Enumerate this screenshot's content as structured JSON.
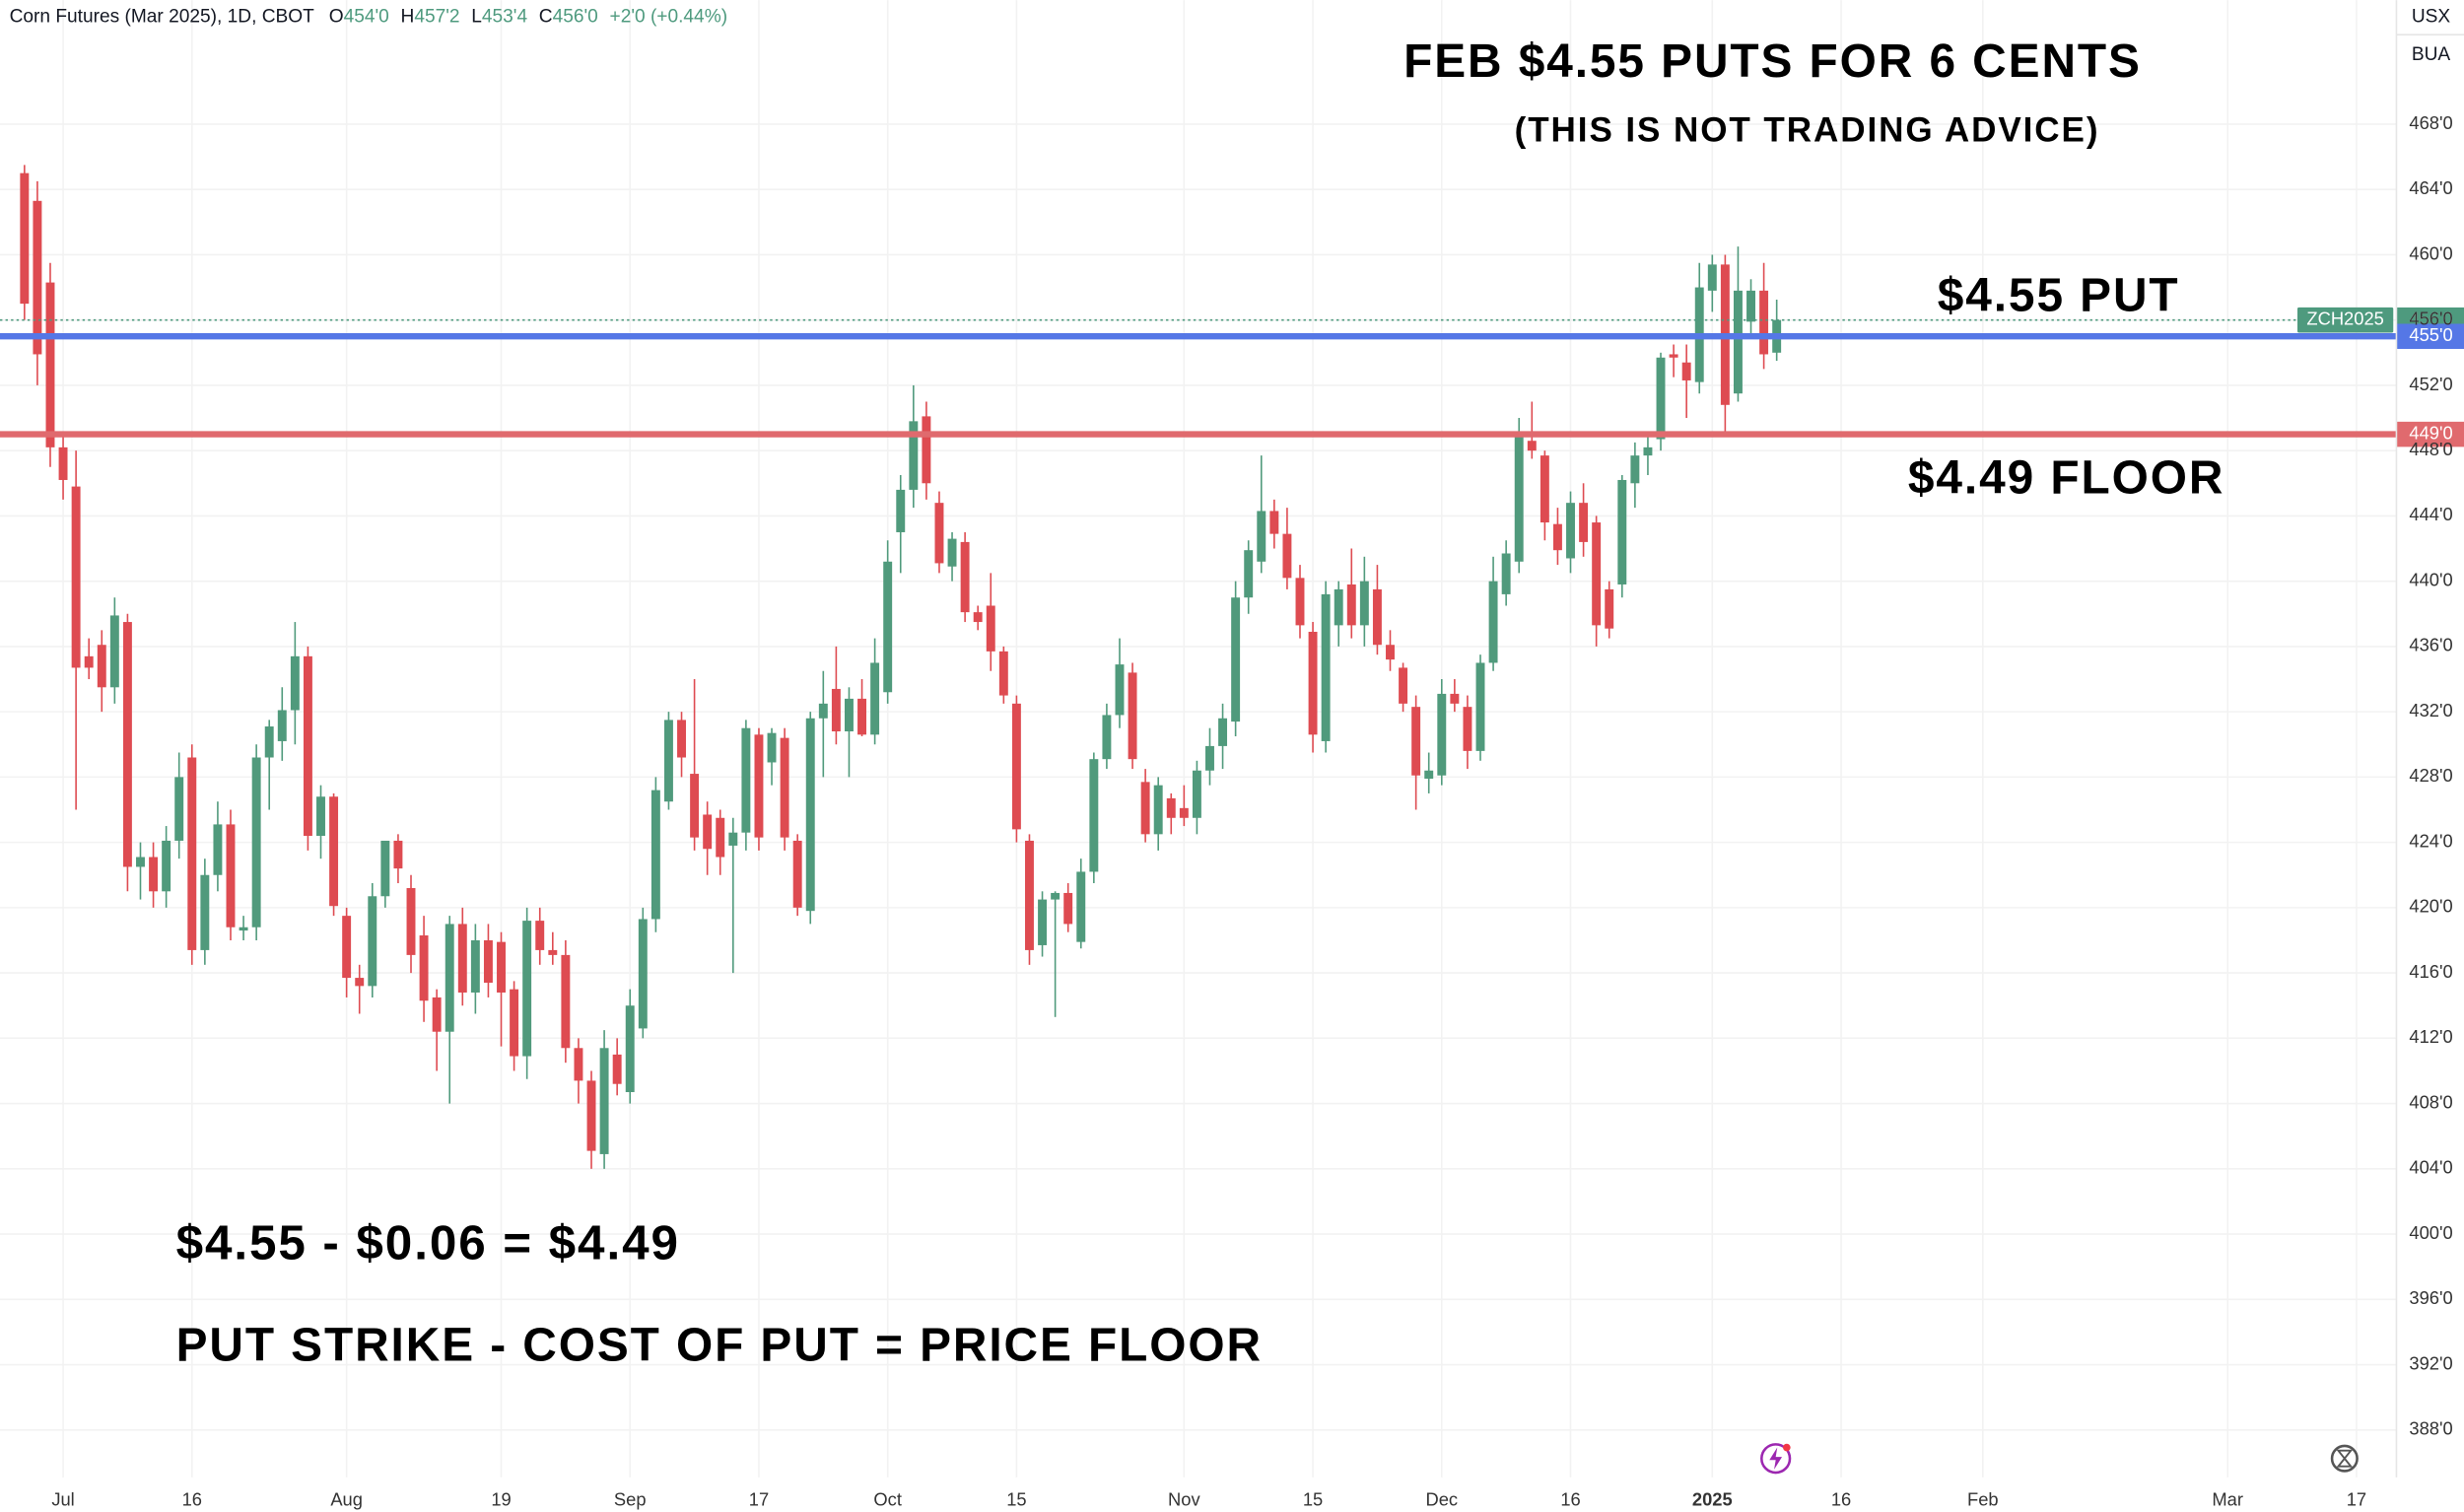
{
  "chart_data": {
    "type": "candlestick",
    "header": {
      "symbol": "Corn Futures (Mar 2025), 1D, CBOT",
      "ohlc": [
        {
          "key": "O",
          "value": "454'0"
        },
        {
          "key": "H",
          "value": "457'2"
        },
        {
          "key": "L",
          "value": "453'4"
        },
        {
          "key": "C",
          "value": "456'0"
        }
      ],
      "change": "+2'0 (+0.44%)"
    },
    "corner_labels": [
      "USX",
      "BUA"
    ],
    "annotations": [
      "FEB $4.55 PUTS FOR 6 CENTS",
      "(THIS IS NOT TRADING ADVICE)",
      "$4.55 PUT",
      "$4.49 FLOOR",
      "$4.55 - $0.06 = $4.49",
      "PUT STRIKE - COST OF PUT = PRICE FLOOR"
    ],
    "up_color": "#509a7c",
    "down_color": "#de4b51",
    "grid": true,
    "xlim": [
      -4.9,
      181.1
    ],
    "xticks": [
      {
        "value": 0,
        "label": "Jul"
      },
      {
        "value": 10,
        "label": "16"
      },
      {
        "value": 22,
        "label": "Aug"
      },
      {
        "value": 34,
        "label": "19"
      },
      {
        "value": 44,
        "label": "Sep"
      },
      {
        "value": 54,
        "label": "17"
      },
      {
        "value": 64,
        "label": "Oct"
      },
      {
        "value": 74,
        "label": "15"
      },
      {
        "value": 87,
        "label": "Nov"
      },
      {
        "value": 97,
        "label": "15"
      },
      {
        "value": 107,
        "label": "Dec"
      },
      {
        "value": 117,
        "label": "16"
      },
      {
        "value": 128,
        "label": "2025"
      },
      {
        "value": 138,
        "label": "16"
      },
      {
        "value": 149,
        "label": "Feb"
      },
      {
        "value": 168,
        "label": "Mar"
      },
      {
        "value": 178,
        "label": "17"
      }
    ],
    "ylim": [
      385.1,
      475.6
    ],
    "yticks": [
      {
        "value": 388,
        "label": "388'0"
      },
      {
        "value": 392,
        "label": "392'0"
      },
      {
        "value": 396,
        "label": "396'0"
      },
      {
        "value": 400,
        "label": "400'0"
      },
      {
        "value": 404,
        "label": "404'0"
      },
      {
        "value": 408,
        "label": "408'0"
      },
      {
        "value": 412,
        "label": "412'0"
      },
      {
        "value": 416,
        "label": "416'0"
      },
      {
        "value": 420,
        "label": "420'0"
      },
      {
        "value": 424,
        "label": "424'0"
      },
      {
        "value": 428,
        "label": "428'0"
      },
      {
        "value": 432,
        "label": "432'0"
      },
      {
        "value": 436,
        "label": "436'0"
      },
      {
        "value": 440,
        "label": "440'0"
      },
      {
        "value": 444,
        "label": "444'0"
      },
      {
        "value": 448,
        "label": "448'0"
      },
      {
        "value": 452,
        "label": "452'0"
      },
      {
        "value": 456,
        "label": "456'0"
      },
      {
        "value": 460,
        "label": "460'0"
      },
      {
        "value": 464,
        "label": "464'0"
      },
      {
        "value": 468,
        "label": "468'0"
      }
    ],
    "levels": [
      {
        "value": 455,
        "label": "455'0",
        "color": "#5577e6"
      },
      {
        "value": 449,
        "label": "449'0",
        "color": "#e06a6e"
      }
    ],
    "last_price": {
      "symbol": "ZCH2025",
      "value": 456,
      "label": "456'0",
      "color": "#4e9a7e"
    },
    "x": [
      -3,
      -2,
      -1,
      0,
      1,
      2,
      3,
      4,
      5,
      6,
      7,
      8,
      9,
      10,
      11,
      12,
      13,
      14,
      15,
      16,
      17,
      18,
      19,
      20,
      21,
      22,
      23,
      24,
      25,
      26,
      27,
      28,
      29,
      30,
      31,
      32,
      33,
      34,
      35,
      36,
      37,
      38,
      39,
      40,
      41,
      42,
      43,
      44,
      45,
      46,
      47,
      48,
      49,
      50,
      51,
      52,
      53,
      54,
      55,
      56,
      57,
      58,
      59,
      60,
      61,
      62,
      63,
      64,
      65,
      66,
      67,
      68,
      69,
      70,
      71,
      72,
      73,
      74,
      75,
      76,
      77,
      78,
      79,
      80,
      81,
      82,
      83,
      84,
      85,
      86,
      87,
      88,
      89,
      90,
      91,
      92,
      93,
      94,
      95,
      96,
      97,
      98,
      99,
      100,
      101,
      102,
      103,
      104,
      105,
      106,
      107,
      108,
      109,
      110,
      111,
      112,
      113,
      114,
      115,
      116,
      117,
      118,
      119,
      120,
      121,
      122,
      123,
      124,
      125,
      126,
      127,
      128,
      129,
      130,
      131,
      132,
      133
    ],
    "open": [
      465.0,
      463.3,
      458.3,
      448.2,
      445.8,
      435.4,
      436.1,
      433.5,
      437.5,
      422.5,
      423.1,
      421.0,
      424.1,
      429.2,
      417.4,
      422.0,
      425.1,
      418.6,
      418.8,
      429.2,
      430.2,
      432.1,
      435.4,
      424.4,
      426.8,
      419.5,
      415.7,
      415.2,
      420.7,
      424.1,
      421.2,
      418.3,
      414.5,
      412.4,
      419.0,
      414.8,
      418.0,
      417.9,
      415.0,
      410.9,
      419.2,
      417.4,
      417.1,
      411.4,
      409.4,
      404.9,
      411.0,
      408.7,
      412.6,
      419.3,
      426.5,
      431.5,
      428.2,
      425.7,
      425.5,
      423.8,
      424.6,
      430.6,
      428.9,
      430.4,
      424.1,
      419.8,
      431.6,
      433.4,
      430.8,
      432.8,
      430.6,
      433.2,
      443.0,
      445.6,
      450.1,
      444.8,
      440.9,
      442.4,
      438.1,
      438.5,
      435.7,
      432.5,
      424.1,
      417.7,
      420.5,
      420.9,
      417.9,
      422.2,
      429.1,
      431.8,
      434.4,
      427.7,
      424.5,
      426.7,
      426.1,
      425.5,
      428.4,
      429.9,
      431.4,
      439.0,
      441.2,
      444.3,
      442.9,
      440.2,
      436.9,
      430.2,
      437.3,
      439.8,
      437.3,
      439.5,
      436.1,
      434.7,
      432.3,
      427.9,
      428.1,
      433.1,
      432.3,
      429.6,
      435.0,
      439.2,
      441.2,
      448.6,
      447.7,
      443.5,
      441.4,
      444.8,
      443.6,
      439.5,
      439.8,
      446.0,
      447.7,
      448.7,
      453.9,
      453.4,
      452.2,
      457.8,
      459.4,
      451.5,
      455.9,
      457.8,
      454.0
    ],
    "high": [
      465.5,
      464.5,
      459.5,
      449.0,
      448.0,
      436.5,
      437.0,
      439.0,
      438.0,
      424.0,
      424.0,
      425.0,
      429.5,
      430.0,
      423.0,
      426.5,
      426.0,
      419.5,
      430.0,
      431.5,
      433.5,
      437.5,
      436.0,
      427.5,
      427.0,
      420.0,
      416.5,
      421.5,
      424.0,
      424.5,
      422.0,
      419.5,
      415.0,
      419.5,
      420.0,
      419.0,
      419.0,
      418.5,
      415.5,
      420.0,
      420.0,
      418.5,
      418.0,
      412.0,
      410.0,
      412.5,
      412.0,
      415.0,
      420.0,
      428.0,
      432.0,
      432.0,
      434.0,
      426.5,
      426.0,
      425.5,
      431.5,
      431.0,
      431.0,
      431.0,
      424.5,
      432.0,
      434.5,
      436.0,
      433.5,
      434.0,
      436.5,
      442.5,
      446.5,
      452.0,
      451.0,
      445.5,
      443.0,
      443.0,
      438.5,
      440.5,
      436.0,
      433.0,
      424.5,
      421.0,
      421.0,
      421.5,
      423.0,
      429.5,
      432.5,
      436.5,
      435.0,
      428.5,
      428.0,
      427.0,
      427.5,
      429.0,
      431.0,
      432.5,
      440.0,
      442.5,
      447.7,
      445.0,
      444.5,
      441.0,
      437.5,
      440.0,
      440.0,
      442.0,
      441.5,
      441.0,
      437.0,
      435.0,
      433.0,
      429.5,
      434.0,
      434.0,
      433.0,
      435.5,
      441.5,
      442.5,
      450.0,
      451.0,
      448.0,
      444.5,
      445.5,
      446.0,
      444.0,
      440.0,
      446.5,
      448.5,
      449.0,
      454.0,
      454.5,
      454.5,
      459.5,
      460.0,
      460.0,
      460.5,
      458.5,
      459.5,
      457.25
    ],
    "low": [
      456.0,
      452.0,
      447.0,
      445.0,
      426.0,
      434.0,
      432.0,
      432.5,
      421.0,
      420.5,
      420.0,
      420.0,
      423.0,
      416.5,
      416.5,
      421.0,
      418.0,
      418.0,
      418.0,
      426.0,
      429.0,
      430.0,
      423.5,
      423.0,
      419.5,
      414.5,
      413.5,
      414.5,
      420.0,
      421.5,
      416.0,
      413.0,
      410.0,
      408.0,
      414.0,
      413.5,
      414.5,
      411.5,
      410.0,
      409.5,
      416.5,
      416.5,
      410.5,
      408.0,
      404.0,
      404.0,
      408.5,
      408.0,
      412.0,
      418.5,
      426.0,
      428.0,
      423.5,
      422.0,
      422.0,
      416.0,
      423.5,
      423.5,
      427.5,
      423.5,
      419.5,
      419.0,
      428.0,
      430.0,
      428.0,
      430.5,
      430.0,
      432.5,
      440.5,
      444.5,
      445.0,
      440.5,
      440.0,
      437.5,
      437.0,
      434.5,
      432.5,
      424.0,
      416.5,
      417.0,
      413.3,
      418.5,
      417.5,
      421.5,
      428.5,
      431.0,
      428.5,
      424.0,
      423.5,
      424.5,
      425.0,
      424.5,
      427.5,
      428.5,
      430.5,
      438.0,
      440.5,
      442.0,
      439.5,
      436.5,
      429.5,
      429.5,
      436.0,
      436.5,
      436.0,
      435.5,
      434.5,
      432.0,
      426.0,
      427.0,
      427.5,
      432.0,
      428.5,
      429.0,
      434.5,
      438.5,
      440.5,
      447.5,
      442.5,
      441.0,
      440.5,
      441.5,
      436.0,
      436.5,
      439.0,
      444.5,
      446.5,
      448.0,
      452.5,
      450.0,
      451.5,
      456.5,
      449.0,
      451.0,
      455.0,
      453.0,
      453.5
    ],
    "close": [
      457.0,
      453.9,
      448.2,
      446.2,
      434.7,
      434.7,
      433.5,
      437.9,
      422.5,
      423.1,
      421.0,
      424.1,
      428.0,
      417.4,
      422.0,
      425.1,
      418.8,
      418.8,
      429.2,
      431.1,
      432.1,
      435.4,
      424.4,
      426.8,
      420.1,
      415.7,
      415.2,
      420.7,
      424.1,
      422.4,
      417.1,
      414.3,
      412.4,
      419.0,
      414.8,
      418.0,
      415.4,
      414.8,
      410.9,
      419.2,
      417.4,
      417.1,
      411.4,
      409.4,
      405.1,
      411.4,
      409.2,
      414.0,
      419.3,
      427.2,
      431.5,
      429.2,
      424.3,
      423.6,
      423.1,
      424.6,
      431.0,
      424.3,
      430.7,
      424.3,
      420.0,
      431.6,
      432.5,
      430.8,
      432.8,
      430.6,
      435.0,
      441.2,
      445.6,
      449.8,
      446.0,
      441.1,
      442.6,
      438.1,
      437.5,
      435.7,
      433.0,
      424.8,
      417.4,
      420.5,
      420.9,
      419.0,
      422.2,
      429.1,
      431.8,
      434.9,
      429.1,
      424.5,
      427.5,
      425.5,
      425.5,
      428.4,
      429.9,
      431.6,
      439.0,
      441.9,
      444.3,
      442.9,
      440.2,
      437.3,
      430.6,
      439.2,
      439.5,
      437.3,
      440.0,
      436.1,
      435.2,
      432.5,
      428.1,
      428.4,
      433.1,
      432.5,
      429.6,
      435.0,
      440.0,
      441.7,
      448.9,
      448.0,
      443.6,
      441.9,
      444.8,
      442.4,
      437.3,
      437.1,
      446.2,
      447.7,
      448.2,
      453.7,
      453.7,
      452.3,
      458.0,
      459.4,
      450.8,
      457.8,
      457.8,
      453.9,
      456.0
    ]
  }
}
